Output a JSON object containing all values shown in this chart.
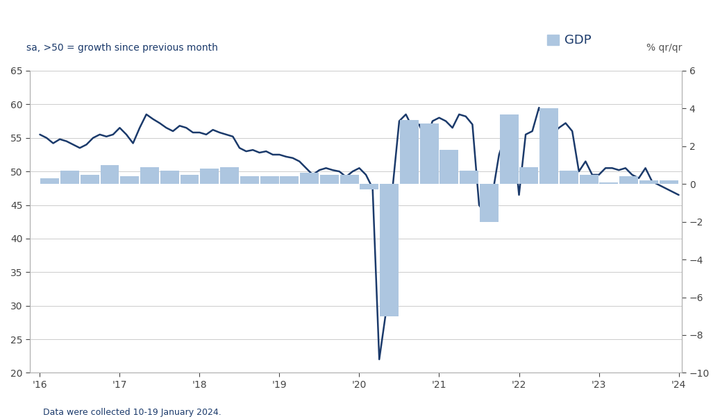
{
  "title_left": "sa, >50 = growth since previous month",
  "title_right": "% qr/qr",
  "footer": "Data were collected 10-19 January 2024.",
  "legend_label": "GDP",
  "legend_color": "#adc6e0",
  "line_color": "#1b3a6b",
  "bar_color": "#adc6e0",
  "background_color": "#ffffff",
  "left_ylim": [
    20,
    65
  ],
  "left_yticks": [
    20,
    25,
    30,
    35,
    40,
    45,
    50,
    55,
    60,
    65
  ],
  "right_ylim": [
    -10,
    6
  ],
  "right_yticks": [
    -10,
    -8,
    -6,
    -4,
    -2,
    0,
    2,
    4,
    6
  ],
  "xlabel_ticks": [
    "'16",
    "'17",
    "'18",
    "'19",
    "'20",
    "'21",
    "'22",
    "'23",
    "'24"
  ],
  "pmi_values": [
    55.5,
    55.0,
    54.2,
    54.8,
    54.5,
    54.0,
    53.5,
    54.0,
    55.0,
    55.5,
    55.2,
    55.5,
    56.5,
    55.5,
    54.2,
    56.5,
    58.5,
    57.8,
    57.2,
    56.5,
    56.0,
    56.8,
    56.5,
    55.8,
    55.8,
    55.5,
    56.2,
    55.8,
    55.5,
    55.2,
    53.5,
    53.0,
    53.2,
    52.8,
    53.0,
    52.5,
    52.5,
    52.2,
    52.0,
    51.5,
    50.5,
    49.5,
    50.2,
    50.5,
    50.2,
    50.0,
    49.2,
    50.0,
    50.5,
    49.5,
    47.5,
    22.0,
    29.0,
    47.5,
    57.5,
    58.5,
    56.5,
    57.0,
    54.5,
    57.5,
    58.0,
    57.5,
    56.5,
    58.5,
    58.2,
    57.0,
    45.0,
    43.5,
    46.5,
    52.5,
    55.5,
    56.5,
    46.5,
    55.5,
    56.0,
    59.5,
    57.0,
    55.5,
    56.5,
    57.2,
    56.0,
    50.0,
    51.5,
    49.5,
    49.5,
    50.5,
    50.5,
    50.2,
    50.5,
    49.5,
    49.0,
    50.5,
    48.5,
    48.0,
    47.5,
    47.0,
    46.5
  ],
  "gdp_values": [
    0.3,
    0.7,
    0.5,
    1.0,
    0.4,
    0.9,
    0.7,
    0.5,
    0.8,
    0.9,
    0.4,
    0.4,
    0.4,
    0.6,
    0.5,
    0.5,
    -0.3,
    -7.0,
    3.4,
    3.2,
    1.8,
    0.7,
    -2.0,
    3.7,
    0.9,
    4.0,
    0.7,
    0.5,
    0.1,
    0.4,
    0.2,
    0.2
  ],
  "gdp_quarter_starts": [
    0,
    3,
    6,
    9,
    12,
    15,
    18,
    21,
    24,
    27,
    30,
    33,
    36,
    39,
    42,
    45,
    48,
    51,
    54,
    57,
    60,
    63,
    66,
    69,
    72,
    75,
    78,
    81,
    84,
    87,
    90,
    93
  ]
}
